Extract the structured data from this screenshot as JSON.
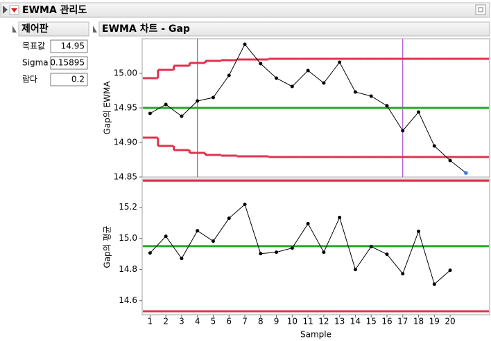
{
  "header": {
    "title": "EWMA 관리도"
  },
  "panel": {
    "title": "제어판",
    "fields": [
      {
        "label": "목표값",
        "value": 14.95
      },
      {
        "label": "Sigma",
        "value": 0.15895
      },
      {
        "label": "람다",
        "value": 0.2
      }
    ]
  },
  "chart_title": "EWMA 차트 - Gap",
  "chart_data": [
    {
      "type": "line",
      "ylabel": "Gap의 EWMA",
      "x": [
        1,
        2,
        3,
        4,
        5,
        6,
        7,
        8,
        9,
        10,
        11,
        12,
        13,
        14,
        15,
        16,
        17,
        18,
        19,
        20
      ],
      "values": [
        14.942,
        14.955,
        14.938,
        14.96,
        14.965,
        14.997,
        15.042,
        15.014,
        14.993,
        14.981,
        15.004,
        14.986,
        15.016,
        14.973,
        14.967,
        14.953,
        14.917,
        14.944,
        14.895,
        14.874
      ],
      "color": "#000000",
      "forecast": {
        "x": 21,
        "value": 14.856,
        "color": "#3a7de0"
      },
      "limit_x": [
        1,
        2,
        3,
        4,
        5,
        6,
        7,
        8,
        9,
        10,
        11,
        12,
        13,
        14,
        15,
        16,
        17,
        18,
        19,
        20,
        21,
        22
      ],
      "ucl": [
        14.993,
        15.005,
        15.011,
        15.015,
        15.018,
        15.019,
        15.02,
        15.02,
        15.021,
        15.021,
        15.021,
        15.021,
        15.021,
        15.021,
        15.021,
        15.021,
        15.021,
        15.021,
        15.021,
        15.021,
        15.021,
        15.021
      ],
      "lcl": [
        14.907,
        14.895,
        14.889,
        14.885,
        14.882,
        14.881,
        14.88,
        14.88,
        14.879,
        14.879,
        14.879,
        14.879,
        14.879,
        14.879,
        14.879,
        14.879,
        14.879,
        14.879,
        14.879,
        14.879,
        14.879,
        14.879
      ],
      "limit_color": "#e0334d",
      "center": 14.95,
      "center_color": "#22aa22",
      "vlines": [
        4,
        17
      ],
      "vline_color": "#9933cc",
      "xlim": [
        0.5,
        22.5
      ],
      "ylim": [
        14.85,
        15.05
      ],
      "yticks": [
        14.85,
        {
          "value": 14.9,
          "label": "14.90"
        },
        14.95,
        {
          "value": 15.0,
          "label": "15.00"
        }
      ]
    },
    {
      "type": "line",
      "ylabel": "Gap의 평균",
      "xlabel": "Sample",
      "x": [
        1,
        2,
        3,
        4,
        5,
        6,
        7,
        8,
        9,
        10,
        11,
        12,
        13,
        14,
        15,
        16,
        17,
        18,
        19,
        20
      ],
      "values": [
        14.906,
        15.013,
        14.871,
        15.049,
        14.982,
        15.129,
        15.218,
        14.902,
        14.911,
        14.938,
        15.094,
        14.911,
        15.134,
        14.8,
        14.947,
        14.898,
        14.773,
        15.045,
        14.706,
        14.795
      ],
      "color": "#000000",
      "ucl": 15.37,
      "lcl": 14.532,
      "limit_color": "#e0334d",
      "center": 14.95,
      "center_color": "#22aa22",
      "xlim": [
        0.5,
        22.5
      ],
      "ylim": [
        14.51,
        15.38
      ],
      "xticks": [
        1,
        2,
        3,
        4,
        5,
        6,
        7,
        8,
        9,
        10,
        11,
        12,
        13,
        14,
        15,
        16,
        17,
        18,
        19,
        20
      ],
      "yticks": [
        14.6,
        14.8,
        {
          "value": 15.0,
          "label": "15.0"
        },
        15.2
      ]
    }
  ]
}
